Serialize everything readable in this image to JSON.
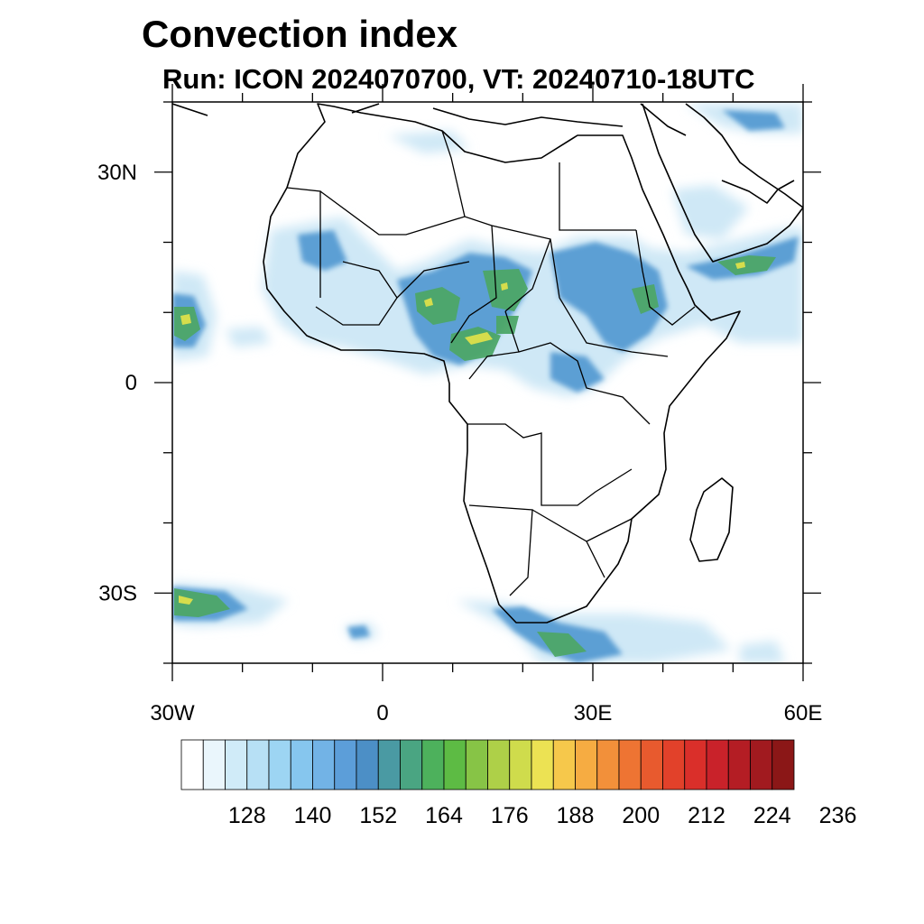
{
  "title": "Convection index",
  "subtitle": "Run: ICON 2024070700,  VT: 20240710-18UTC",
  "axes": {
    "lon_range": [
      -30,
      60
    ],
    "lat_range": [
      -40,
      40
    ],
    "x_ticks": [
      {
        "value": -30,
        "label": "30W"
      },
      {
        "value": 0,
        "label": "0"
      },
      {
        "value": 30,
        "label": "30E"
      },
      {
        "value": 60,
        "label": "60E"
      }
    ],
    "y_ticks": [
      {
        "value": 30,
        "label": "30N"
      },
      {
        "value": 0,
        "label": "0"
      },
      {
        "value": -30,
        "label": "30S"
      }
    ]
  },
  "colorbar": {
    "colors": [
      "#ffffff",
      "#eaf6fc",
      "#d0ebf8",
      "#b7e0f5",
      "#9dd5f3",
      "#86c6ee",
      "#72b3e6",
      "#5c9ed9",
      "#4c8fc6",
      "#4a9aa3",
      "#4aa582",
      "#4db15c",
      "#5dbb44",
      "#87c446",
      "#aed048",
      "#cfdc4c",
      "#ece253",
      "#f6c84b",
      "#f6ac42",
      "#f2903a",
      "#ee7433",
      "#e85a2e",
      "#e2412a",
      "#da2f2a",
      "#c9222a",
      "#b41d24",
      "#a11a1f",
      "#8b1717"
    ],
    "labels": [
      "128",
      "140",
      "152",
      "164",
      "176",
      "188",
      "200",
      "212",
      "224",
      "236"
    ]
  },
  "field_colors": {
    "light": "#cfe8f6",
    "mid": "#8cc4ea",
    "blue": "#5b9fd4",
    "green": "#4da768",
    "yellow": "#d6dd4c",
    "coast": "#000000"
  }
}
